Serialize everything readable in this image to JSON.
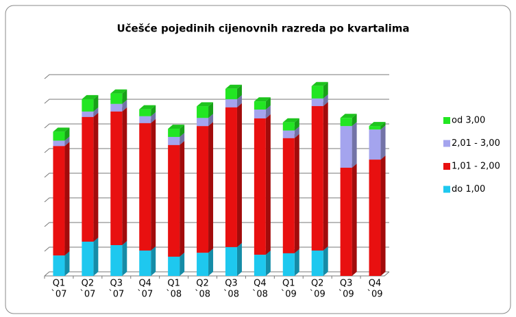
{
  "chart_data": {
    "type": "bar3d_stacked",
    "title": "Učešće pojedinih cijenovnih razreda po kvartalima",
    "categories": [
      [
        "Q1",
        "`07"
      ],
      [
        "Q2",
        "`07"
      ],
      [
        "Q3",
        "`07"
      ],
      [
        "Q4",
        "`07"
      ],
      [
        "Q1",
        "`08"
      ],
      [
        "Q2",
        "`08"
      ],
      [
        "Q3",
        "`08"
      ],
      [
        "Q4",
        "`08"
      ],
      [
        "Q1",
        "`09"
      ],
      [
        "Q2",
        "`09"
      ],
      [
        "Q3",
        "`09"
      ],
      [
        "Q4",
        "`09"
      ]
    ],
    "series": [
      {
        "name": "do 1,00",
        "color": "#1ec8ef",
        "values": [
          0.83,
          1.39,
          1.25,
          1.03,
          0.78,
          0.94,
          1.17,
          0.86,
          0.92,
          1.03,
          0,
          0
        ]
      },
      {
        "name": "1,01 - 2,00",
        "color": "#e81010",
        "values": [
          4.44,
          5.06,
          5.42,
          5.17,
          4.53,
          5.14,
          5.67,
          5.53,
          4.67,
          5.86,
          4.39,
          4.72
        ]
      },
      {
        "name": "2,01 - 3,00",
        "color": "#a4a4ee",
        "values": [
          0.22,
          0.22,
          0.31,
          0.28,
          0.33,
          0.33,
          0.33,
          0.36,
          0.31,
          0.31,
          1.69,
          1.22
        ]
      },
      {
        "name": "od 3,00",
        "color": "#22e622",
        "values": [
          0.36,
          0.5,
          0.42,
          0.28,
          0.33,
          0.47,
          0.42,
          0.33,
          0.33,
          0.5,
          0.33,
          0.14
        ]
      }
    ],
    "ylim": [
      0,
      8
    ],
    "yticks": [
      0,
      1,
      2,
      3,
      4,
      5,
      6,
      7,
      8
    ],
    "grid": true,
    "legend": "right"
  }
}
